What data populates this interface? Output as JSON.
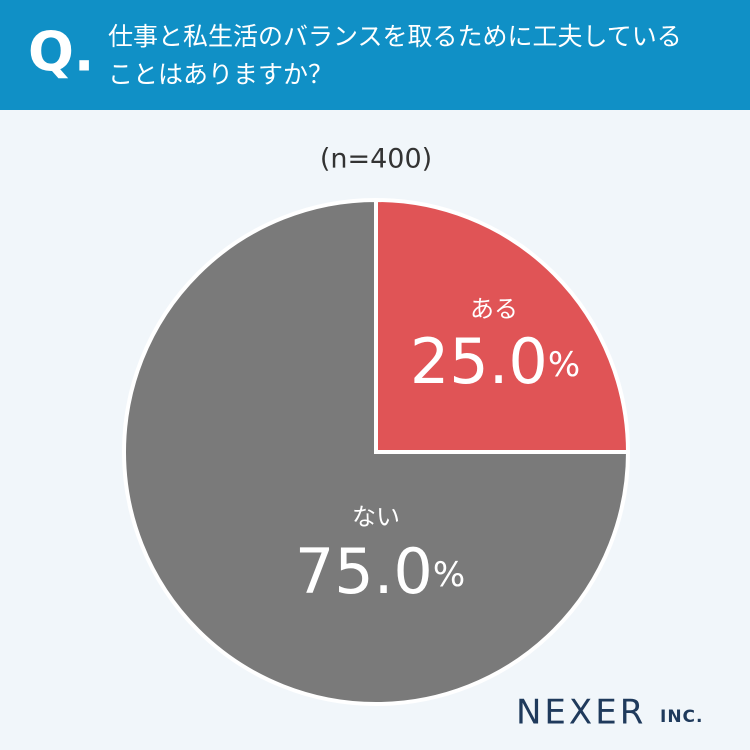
{
  "chart_data": {
    "type": "pie",
    "q_mark": "Q.",
    "title_lines": [
      "仕事と私生活のバランスを取るために工夫している",
      "ことはありますか？"
    ],
    "subtitle": "(n=400)",
    "categories": [
      "ある",
      "ない"
    ],
    "values": [
      25.0,
      75.0
    ],
    "value_labels": [
      "25.0%",
      "75.0%"
    ],
    "colors": [
      "#e05456",
      "#7a7a7a"
    ]
  },
  "logo": {
    "name": "NEXER",
    "suffix": "INC."
  }
}
